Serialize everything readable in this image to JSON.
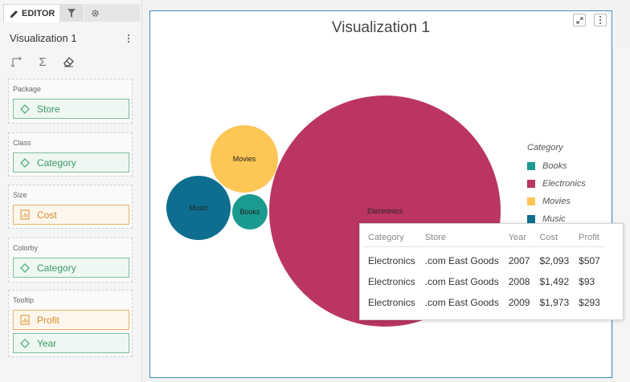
{
  "editor": {
    "tabs": {
      "editor_label": "EDITOR"
    },
    "viz_title": "Visualization 1",
    "wells": [
      {
        "label": "Package",
        "pills": [
          {
            "label": "Store",
            "kind": "dimension"
          }
        ]
      },
      {
        "label": "Class",
        "pills": [
          {
            "label": "Category",
            "kind": "dimension"
          }
        ]
      },
      {
        "label": "Size",
        "pills": [
          {
            "label": "Cost",
            "kind": "measure"
          }
        ]
      },
      {
        "label": "Colorby",
        "pills": [
          {
            "label": "Category",
            "kind": "dimension"
          }
        ]
      },
      {
        "label": "Tooltip",
        "pills": [
          {
            "label": "Profit",
            "kind": "measure"
          },
          {
            "label": "Year",
            "kind": "dimension"
          }
        ]
      }
    ]
  },
  "visualization": {
    "title": "Visualization 1",
    "legend": {
      "title": "Category",
      "items": [
        {
          "label": "Books",
          "color": "#1b9a8f"
        },
        {
          "label": "Electronics",
          "color": "#bb3562"
        },
        {
          "label": "Movies",
          "color": "#fdc656"
        },
        {
          "label": "Music",
          "color": "#0e6e8f"
        }
      ]
    }
  },
  "chart_data": {
    "type": "packed-bubble",
    "title": "Visualization 1",
    "size_measure": "Cost",
    "color_by": "Category",
    "bubbles": [
      {
        "label": "Electronics",
        "color": "#bb3562"
      },
      {
        "label": "Movies",
        "color": "#fdc656"
      },
      {
        "label": "Music",
        "color": "#0e6e8f"
      },
      {
        "label": "Books",
        "color": "#1b9a8f"
      }
    ]
  },
  "tooltip": {
    "columns": [
      "Category",
      "Store",
      "Year",
      "Cost",
      "Profit"
    ],
    "rows": [
      [
        "Electronics",
        ".com East Goods",
        "2007",
        "$2,093",
        "$507"
      ],
      [
        "Electronics",
        ".com East Goods",
        "2008",
        "$1,492",
        "$93"
      ],
      [
        "Electronics",
        ".com East Goods",
        "2009",
        "$1,973",
        "$293"
      ]
    ]
  },
  "colors": {
    "accent": "#3a8fc4",
    "dimension_pill": "#3e9a6a",
    "measure_pill": "#d98a2b"
  }
}
